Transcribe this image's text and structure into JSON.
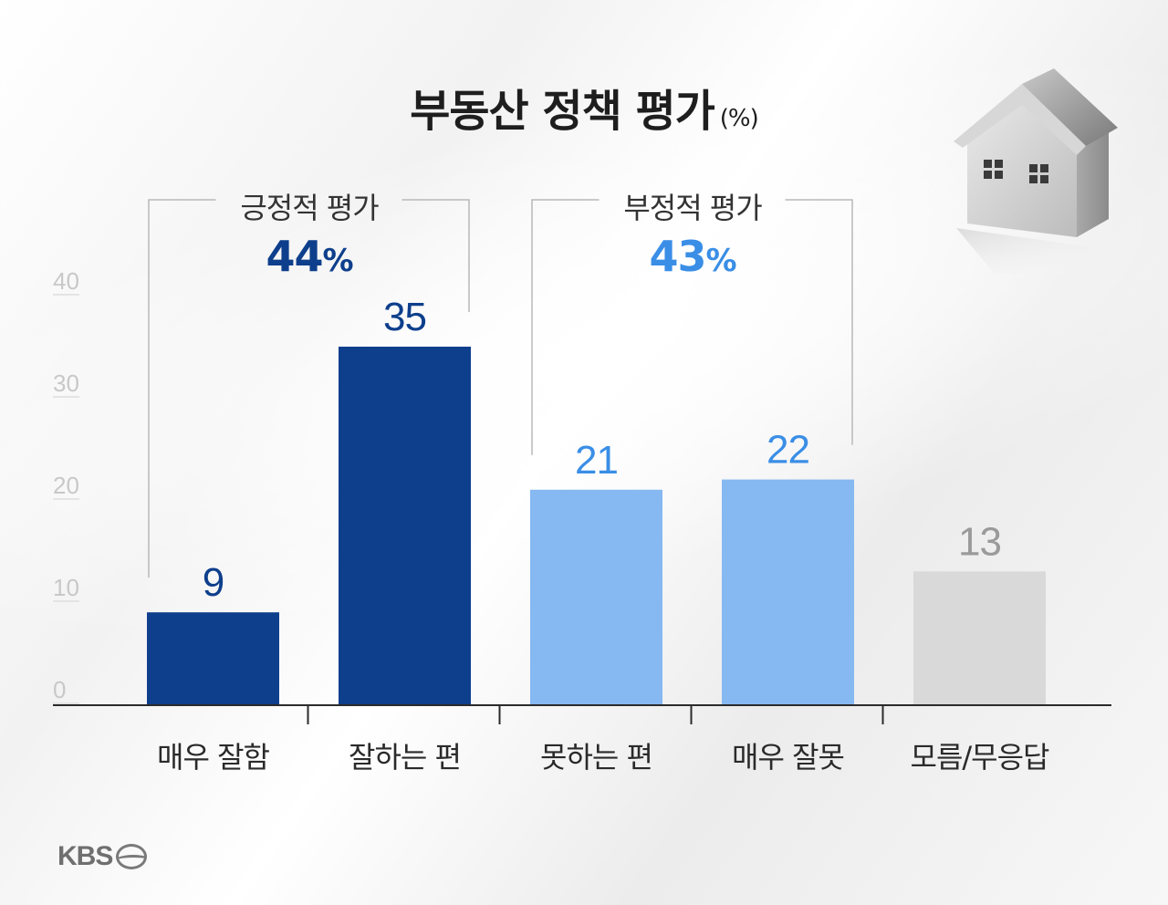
{
  "title": "부동산 정책 평가",
  "unit": "(%)",
  "groups": {
    "positive": {
      "label": "긍정적 평가",
      "value": "44",
      "suffix": "%"
    },
    "negative": {
      "label": "부정적 평가",
      "value": "43",
      "suffix": "%"
    }
  },
  "logo": "KBS",
  "colors": {
    "positive": "#0e3f8c",
    "negative": "#86b8f2",
    "neutral": "#d9d9d9",
    "positive_text": "#0e3f8c",
    "negative_text": "#3a8ee6",
    "neutral_text": "#9a9a9a"
  },
  "chart_data": {
    "type": "bar",
    "categories": [
      "매우 잘함",
      "잘하는 편",
      "못하는 편",
      "매우 잘못",
      "모름/무응답"
    ],
    "values": [
      9,
      35,
      21,
      22,
      13
    ],
    "bar_colors": [
      "positive",
      "positive",
      "negative",
      "negative",
      "neutral"
    ],
    "y_ticks": [
      0,
      10,
      20,
      30,
      40
    ],
    "ylim": [
      0,
      40
    ],
    "grid": false,
    "xlabel": "",
    "ylabel": ""
  }
}
